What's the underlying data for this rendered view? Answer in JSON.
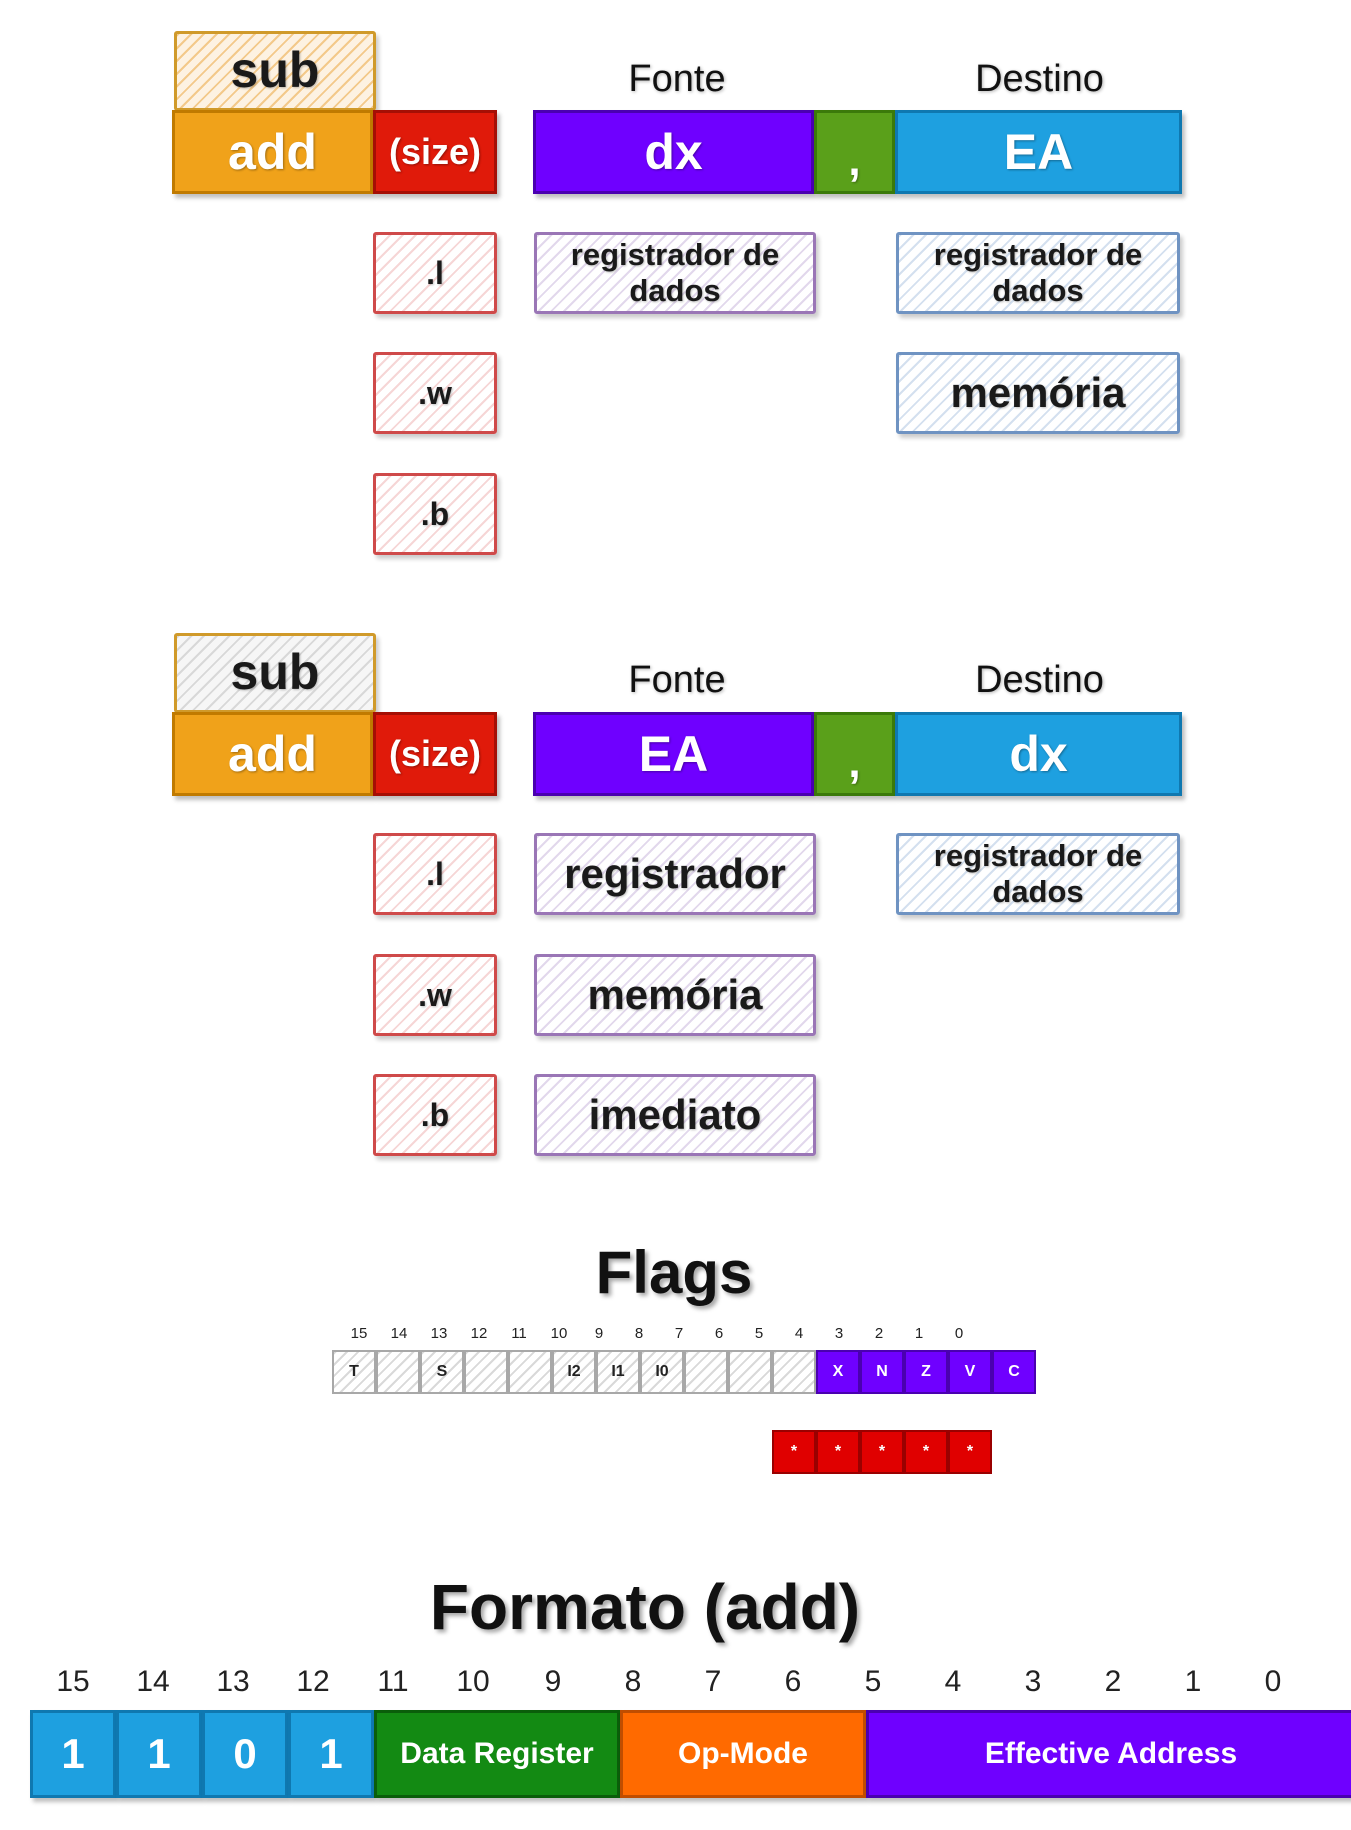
{
  "diagram1": {
    "sub_label": "sub",
    "add_label": "add",
    "size_label": "(size)",
    "fonte_label": "Fonte",
    "destino_label": "Destino",
    "src_operand": "dx",
    "comma": ",",
    "dst_operand": "EA",
    "sizes": [
      ".l",
      ".w",
      ".b"
    ],
    "src_options": [
      "registrador de dados"
    ],
    "dst_options": [
      "registrador de dados",
      "memória"
    ]
  },
  "diagram2": {
    "sub_label": "sub",
    "add_label": "add",
    "size_label": "(size)",
    "fonte_label": "Fonte",
    "destino_label": "Destino",
    "src_operand": "EA",
    "comma": ",",
    "dst_operand": "dx",
    "sizes": [
      ".l",
      ".w",
      ".b"
    ],
    "src_options": [
      "registrador",
      "memória",
      "imediato"
    ],
    "dst_options": [
      "registrador de dados"
    ]
  },
  "flags": {
    "title": "Flags",
    "bit_numbers": [
      "15",
      "14",
      "13",
      "12",
      "11",
      "10",
      "9",
      "8",
      "7",
      "6",
      "5",
      "4",
      "3",
      "2",
      "1",
      "0"
    ],
    "bit_labels": [
      "T",
      "",
      "S",
      "",
      "",
      "I2",
      "I1",
      "I0",
      "",
      "",
      "",
      "X",
      "N",
      "Z",
      "V",
      "C"
    ],
    "affected_marks": [
      "*",
      "*",
      "*",
      "*",
      "*"
    ]
  },
  "format": {
    "title": "Formato (add)",
    "bit_numbers": [
      "15",
      "14",
      "13",
      "12",
      "11",
      "10",
      "9",
      "8",
      "7",
      "6",
      "5",
      "4",
      "3",
      "2",
      "1",
      "0"
    ],
    "fixed_bits": [
      "1",
      "1",
      "0",
      "1"
    ],
    "data_register": "Data Register",
    "op_mode": "Op-Mode",
    "effective_address": "Effective Address"
  },
  "colors": {
    "add": "#f0a21a",
    "size": "#e01a0a",
    "source": "#6f00ff",
    "comma": "#5aa01a",
    "destination": "#1ea0e0",
    "fixed_bits": "#1ea0e0",
    "data_register": "#138a13",
    "op_mode": "#ff6a00",
    "effective_address": "#6f00ff"
  }
}
